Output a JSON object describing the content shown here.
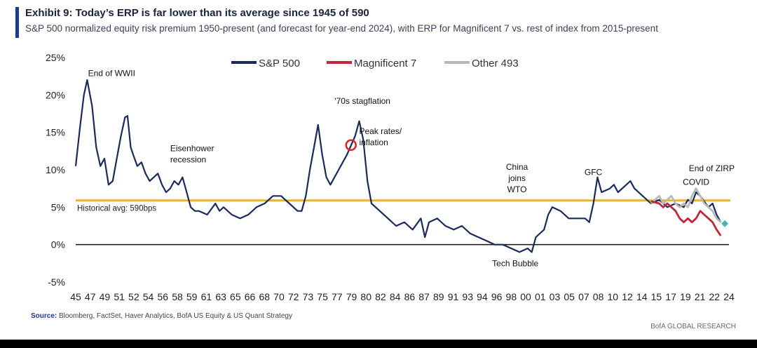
{
  "header": {
    "title": "Exhibit 9: Today’s ERP is far lower than its average since 1945 of 590",
    "subtitle": "S&P 500 normalized equity risk premium 1950-present (and forecast for year-end 2024), with ERP for Magnificent 7 vs. rest of index from 2015-present"
  },
  "footer": {
    "source_label": "Source:",
    "source_text": " Bloomberg, FactSet, Haver Analytics, BofA US Equity & US Quant Strategy",
    "brand": "BofA GLOBAL RESEARCH"
  },
  "colors": {
    "sp500": "#1a2a5c",
    "mag7": "#c0283a",
    "other493": "#b8b8b8",
    "avg_line": "#e3b43a",
    "forecast": "#40b8b0",
    "marker": "#d8232a"
  },
  "chart_data": {
    "type": "line",
    "title": "Exhibit 9: Today’s ERP is far lower than its average since 1945 of 590",
    "ylim": [
      -5,
      25
    ],
    "yticks": [
      -5,
      0,
      5,
      10,
      15,
      20,
      25
    ],
    "ytick_labels": [
      "-5%",
      "0%",
      "5%",
      "10%",
      "15%",
      "20%",
      "25%"
    ],
    "xlim": [
      1945,
      2024.5
    ],
    "xtick_labels": [
      "45",
      "47",
      "49",
      "51",
      "52",
      "54",
      "56",
      "58",
      "59",
      "61",
      "63",
      "65",
      "66",
      "68",
      "70",
      "72",
      "73",
      "75",
      "77",
      "79",
      "80",
      "82",
      "84",
      "86",
      "87",
      "89",
      "91",
      "93",
      "94",
      "96",
      "98",
      "00",
      "01",
      "03",
      "05",
      "07",
      "08",
      "10",
      "12",
      "14",
      "15",
      "17",
      "19",
      "21",
      "22",
      "24"
    ],
    "legend": [
      "S&P 500",
      "Magnificent 7",
      "Other 493"
    ],
    "legend_position": "top",
    "reference_line": {
      "value": 5.9,
      "label": "Historical avg: 590bps"
    },
    "annotations": [
      {
        "text": "End of WWII",
        "x": 1946.5,
        "y": 22.5
      },
      {
        "text": "Eisenhower",
        "x": 1956.5,
        "y": 12.5
      },
      {
        "text": "recession",
        "x": 1956.5,
        "y": 11.0
      },
      {
        "text": "'70s stagflation",
        "x": 1976.5,
        "y": 18.8
      },
      {
        "text": "Peak rates/",
        "x": 1979.5,
        "y": 14.8
      },
      {
        "text": "inflation",
        "x": 1979.5,
        "y": 13.3
      },
      {
        "text": "China",
        "x": 1998.7,
        "y": 10.0
      },
      {
        "text": "joins",
        "x": 1998.7,
        "y": 8.5
      },
      {
        "text": "WTO",
        "x": 1998.7,
        "y": 7.0
      },
      {
        "text": "GFC",
        "x": 2008.0,
        "y": 9.3
      },
      {
        "text": "COVID",
        "x": 2020.5,
        "y": 8.0
      },
      {
        "text": "End of ZIRP",
        "x": 2022.4,
        "y": 9.8
      },
      {
        "text": "Tech Bubble",
        "x": 1998.5,
        "y": -2.9
      }
    ],
    "peak_marker": {
      "x": 1978.5,
      "y": 13.3
    },
    "series": [
      {
        "name": "S&P 500",
        "x": [
          1945.0,
          1945.5,
          1946.0,
          1946.4,
          1947.0,
          1947.5,
          1948.0,
          1948.5,
          1949.0,
          1949.5,
          1950.0,
          1950.5,
          1951.0,
          1951.3,
          1951.7,
          1952.0,
          1952.5,
          1953.0,
          1953.5,
          1954.0,
          1954.5,
          1955.0,
          1955.5,
          1956.0,
          1956.5,
          1957.0,
          1957.5,
          1958.0,
          1958.5,
          1959.0,
          1959.5,
          1960.0,
          1961.0,
          1962.0,
          1962.5,
          1963.0,
          1964.0,
          1965.0,
          1966.0,
          1966.5,
          1967.0,
          1968.0,
          1969.0,
          1970.0,
          1970.5,
          1971.0,
          1972.0,
          1972.5,
          1973.0,
          1973.5,
          1974.0,
          1974.5,
          1975.0,
          1975.5,
          1976.0,
          1977.0,
          1978.0,
          1979.0,
          1979.5,
          1980.0,
          1980.5,
          1981.0,
          1982.0,
          1983.0,
          1984.0,
          1985.0,
          1986.0,
          1987.0,
          1987.5,
          1988.0,
          1989.0,
          1990.0,
          1991.0,
          1992.0,
          1993.0,
          1994.0,
          1995.0,
          1996.0,
          1997.0,
          1998.0,
          1999.0,
          2000.0,
          2000.5,
          2001.0,
          2002.0,
          2002.5,
          2003.0,
          2004.0,
          2005.0,
          2006.0,
          2007.0,
          2007.5,
          2008.0,
          2008.5,
          2009.0,
          2010.0,
          2010.5,
          2011.0,
          2012.0,
          2012.5,
          2013.0,
          2014.0,
          2015.0,
          2016.0,
          2017.0,
          2018.0,
          2019.0,
          2019.5,
          2020.0,
          2020.5,
          2021.0,
          2022.0,
          2022.5,
          2023.0,
          2023.5
        ],
        "y": [
          10.5,
          15.5,
          20.0,
          22.0,
          18.5,
          13.0,
          10.5,
          11.5,
          8.0,
          8.5,
          11.5,
          14.5,
          17.0,
          17.2,
          13.0,
          12.0,
          10.5,
          11.0,
          9.5,
          8.5,
          9.0,
          9.5,
          8.0,
          7.0,
          7.5,
          8.5,
          8.0,
          9.0,
          7.0,
          5.0,
          4.5,
          4.5,
          4.0,
          5.5,
          4.5,
          5.0,
          4.0,
          3.5,
          4.0,
          4.5,
          5.0,
          5.5,
          6.5,
          6.5,
          6.0,
          5.5,
          4.5,
          4.5,
          6.5,
          10.0,
          13.0,
          16.0,
          12.0,
          9.0,
          8.0,
          10.0,
          12.0,
          14.5,
          16.5,
          14.0,
          8.5,
          5.5,
          4.5,
          3.5,
          2.5,
          3.0,
          2.0,
          3.5,
          1.0,
          3.0,
          3.5,
          2.5,
          2.0,
          2.5,
          1.5,
          1.0,
          0.5,
          0.0,
          0.0,
          -0.5,
          -1.0,
          -0.5,
          -1.0,
          1.0,
          2.0,
          4.0,
          5.0,
          4.5,
          3.5,
          3.5,
          3.5,
          3.0,
          5.5,
          9.0,
          7.0,
          7.5,
          8.0,
          7.0,
          8.0,
          8.5,
          7.5,
          6.5,
          5.5,
          6.0,
          5.0,
          5.5,
          5.0,
          6.0,
          5.5,
          7.0,
          6.5,
          5.0,
          5.5,
          4.0,
          3.0
        ]
      },
      {
        "name": "Magnificent 7",
        "x": [
          2015.0,
          2016.0,
          2016.5,
          2017.0,
          2018.0,
          2018.5,
          2019.0,
          2019.5,
          2020.0,
          2020.5,
          2021.0,
          2021.5,
          2022.0,
          2022.5,
          2023.0,
          2023.5
        ],
        "y": [
          5.8,
          5.5,
          5.0,
          5.5,
          4.5,
          3.5,
          3.0,
          3.5,
          3.0,
          3.5,
          4.5,
          4.0,
          3.5,
          3.0,
          2.0,
          1.2
        ]
      },
      {
        "name": "Other 493",
        "x": [
          2015.0,
          2015.5,
          2016.0,
          2016.5,
          2017.0,
          2017.5,
          2018.0,
          2018.5,
          2019.0,
          2019.5,
          2020.0,
          2020.5,
          2021.0,
          2021.5,
          2022.0,
          2022.5,
          2023.0,
          2023.5
        ],
        "y": [
          5.5,
          6.0,
          6.5,
          5.5,
          6.0,
          6.5,
          5.5,
          5.0,
          5.5,
          5.0,
          6.5,
          7.5,
          6.5,
          5.5,
          5.0,
          4.5,
          3.5,
          3.0
        ]
      }
    ],
    "forecast_point": {
      "x": 2024.0,
      "y": 2.8
    }
  }
}
